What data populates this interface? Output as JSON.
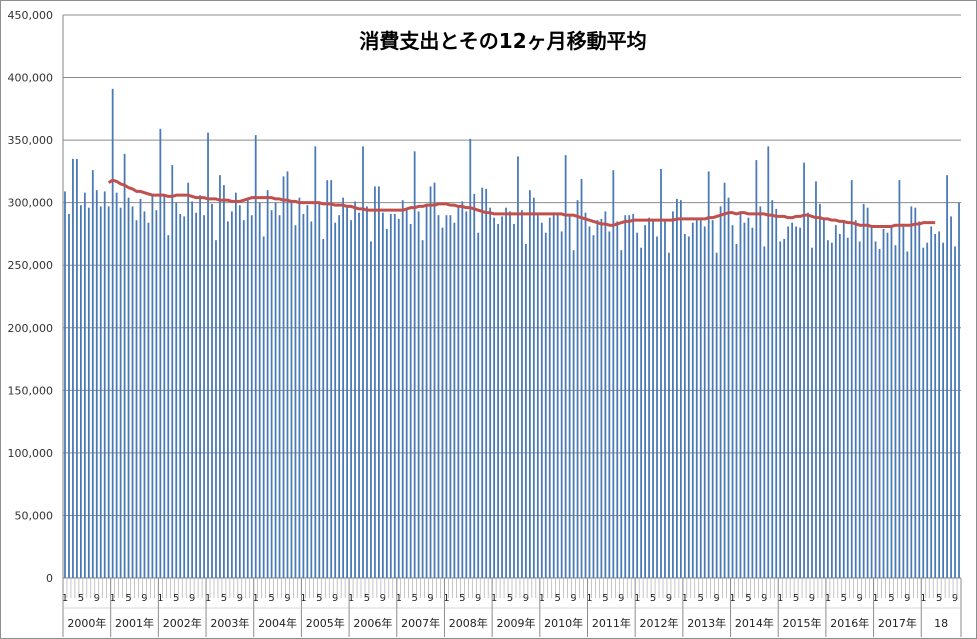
{
  "chart_data": {
    "type": "bar",
    "title": "消費支出とその12ヶ月移動平均",
    "xlabel": "",
    "ylabel": "",
    "ylim": [
      0,
      450000
    ],
    "yticks": [
      0,
      50000,
      100000,
      150000,
      200000,
      250000,
      300000,
      350000,
      400000,
      450000
    ],
    "ytick_labels": [
      "0",
      "50,000",
      "100,000",
      "150,000",
      "200,000",
      "250,000",
      "300,000",
      "350,000",
      "400,000",
      "450,000"
    ],
    "grid": true,
    "legend": "none",
    "start": "2000-01",
    "month_tick_labels": [
      "1",
      "5",
      "9"
    ],
    "year_labels": [
      "2000年",
      "2001年",
      "2002年",
      "2003年",
      "2004年",
      "2005年",
      "2006年",
      "2007年",
      "2008年",
      "2009年",
      "2010年",
      "2011年",
      "2012年",
      "2013年",
      "2014年",
      "2015年",
      "2016年",
      "2017年",
      "18"
    ],
    "colors": {
      "bar": "#4a7ab5",
      "line": "#c0504d",
      "grid": "#8c8c8c"
    },
    "series": [
      {
        "kind": "bar",
        "values": [
          309000,
          291000,
          335000,
          335000,
          298000,
          308000,
          296000,
          326000,
          310000,
          297000,
          309000,
          297000,
          391000,
          308000,
          296000,
          339000,
          304000,
          297000,
          286000,
          303000,
          293000,
          284000,
          306000,
          294000,
          359000,
          305000,
          274000,
          330000,
          300000,
          291000,
          289000,
          316000,
          301000,
          292000,
          306000,
          290000,
          356000,
          299000,
          270000,
          322000,
          314000,
          285000,
          293000,
          308000,
          298000,
          286000,
          303000,
          290000,
          354000,
          300000,
          273000,
          310000,
          294000,
          300000,
          290000,
          321000,
          325000,
          300000,
          282000,
          304000,
          291000,
          298000,
          285000,
          345000,
          299000,
          271000,
          318000,
          318000,
          284000,
          290000,
          304000,
          296000,
          286000,
          301000,
          292000,
          345000,
          297000,
          269000,
          313000,
          313000,
          292000,
          279000,
          291000,
          291000,
          287000,
          302000,
          294000,
          283000,
          341000,
          293000,
          270000,
          298000,
          313000,
          316000,
          290000,
          280000,
          290000,
          290000,
          284000,
          297000,
          301000,
          293000,
          351000,
          307000,
          276000,
          312000,
          311000,
          296000,
          288000,
          283000,
          289000,
          296000,
          293000,
          283000,
          337000,
          294000,
          267000,
          310000,
          304000,
          290000,
          284000,
          276000,
          288000,
          290000,
          291000,
          277000,
          338000,
          289000,
          262000,
          302000,
          319000,
          292000,
          281000,
          274000,
          286000,
          287000,
          293000,
          277000,
          326000,
          285000,
          262000,
          290000,
          290000,
          291000,
          276000,
          264000,
          282000,
          288000,
          286000,
          273000,
          327000,
          286000,
          260000,
          293000,
          303000,
          302000,
          275000,
          273000,
          284000,
          286000,
          286000,
          281000,
          325000,
          286000,
          260000,
          297000,
          316000,
          304000,
          282000,
          267000,
          291000,
          284000,
          288000,
          280000,
          334000,
          297000,
          265000,
          345000,
          302000,
          295000,
          269000,
          271000,
          281000,
          284000,
          281000,
          280000,
          332000,
          292000,
          264000,
          317000,
          299000,
          287000,
          270000,
          268000,
          282000,
          275000,
          284000,
          272000,
          318000,
          286000,
          269000,
          299000,
          296000,
          281000,
          269000,
          263000,
          279000,
          276000,
          281000,
          266000,
          318000,
          283000,
          261000,
          297000,
          296000,
          285000,
          264000,
          268000,
          281000,
          275000,
          277000,
          268000,
          322000,
          289000,
          265000,
          300000
        ]
      },
      {
        "kind": "line",
        "name": "12ヶ月移動平均",
        "values": [
          null,
          null,
          null,
          null,
          null,
          null,
          null,
          null,
          null,
          null,
          null,
          316000,
          318000,
          317000,
          315000,
          314000,
          312000,
          311000,
          309000,
          309000,
          308000,
          307000,
          306000,
          306000,
          306000,
          306000,
          305000,
          305000,
          306000,
          306000,
          306000,
          306000,
          305000,
          304000,
          304000,
          304000,
          303000,
          303000,
          303000,
          302000,
          302000,
          302000,
          301000,
          301000,
          301000,
          302000,
          303000,
          304000,
          304000,
          304000,
          304000,
          304000,
          304000,
          303000,
          303000,
          302000,
          302000,
          301000,
          301000,
          300000,
          300000,
          300000,
          300000,
          300000,
          300000,
          299000,
          299000,
          299000,
          298000,
          298000,
          298000,
          297000,
          297000,
          296000,
          295000,
          295000,
          294000,
          294000,
          294000,
          294000,
          294000,
          294000,
          294000,
          294000,
          294000,
          294000,
          295000,
          296000,
          296000,
          297000,
          297000,
          298000,
          298000,
          298000,
          299000,
          299000,
          299000,
          298000,
          298000,
          297000,
          297000,
          296000,
          296000,
          295000,
          294000,
          293000,
          292000,
          292000,
          291000,
          291000,
          291000,
          291000,
          291000,
          291000,
          291000,
          291000,
          291000,
          291000,
          291000,
          291000,
          291000,
          291000,
          291000,
          291000,
          291000,
          291000,
          290000,
          290000,
          290000,
          289000,
          288000,
          287000,
          286000,
          285000,
          284000,
          283000,
          283000,
          282000,
          282000,
          283000,
          284000,
          285000,
          285000,
          286000,
          286000,
          286000,
          286000,
          286000,
          286000,
          286000,
          286000,
          286000,
          286000,
          286000,
          287000,
          287000,
          287000,
          287000,
          287000,
          287000,
          287000,
          287000,
          288000,
          288000,
          289000,
          290000,
          291000,
          292000,
          292000,
          291000,
          292000,
          292000,
          291000,
          291000,
          291000,
          291000,
          291000,
          290000,
          290000,
          289000,
          289000,
          289000,
          288000,
          288000,
          289000,
          289000,
          290000,
          290000,
          289000,
          288000,
          288000,
          287000,
          287000,
          286000,
          286000,
          285000,
          285000,
          284000,
          284000,
          283000,
          282000,
          282000,
          282000,
          281000,
          281000,
          281000,
          281000,
          281000,
          281000,
          282000,
          282000,
          282000,
          282000,
          282000,
          283000,
          283000,
          284000,
          284000,
          284000,
          284000
        ]
      }
    ]
  }
}
